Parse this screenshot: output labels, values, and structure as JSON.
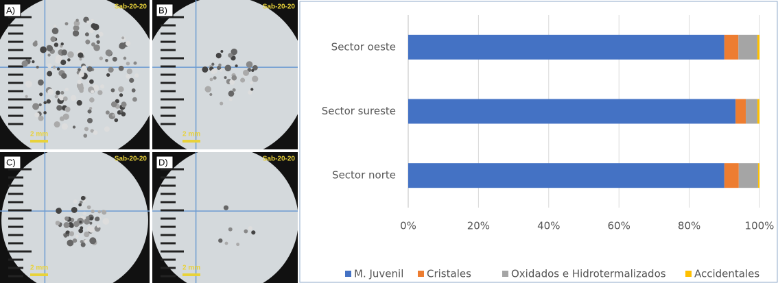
{
  "photos": [
    {
      "label": "A)",
      "sample": "Sab-20-20",
      "scale": "2 mm"
    },
    {
      "label": "B)",
      "sample": "Sab-20-20",
      "scale": "2 mm"
    },
    {
      "label": "C)",
      "sample": "Sab-20-20",
      "scale": "2 mm"
    },
    {
      "label": "D)",
      "sample": "Sab-20-20",
      "scale": "2 mm"
    }
  ],
  "chart_data": {
    "type": "stacked-barh",
    "categories": [
      "Sector oeste",
      "Sector sureste",
      "Sector norte"
    ],
    "series": [
      {
        "name": "M. Juvenil",
        "color": "#4472c4",
        "values": [
          90,
          93.2,
          90
        ]
      },
      {
        "name": "Cristales",
        "color": "#ed7d31",
        "values": [
          4,
          2.9,
          4.1
        ]
      },
      {
        "name": "Oxidados e Hidrotermalizados",
        "color": "#a5a5a5",
        "values": [
          5.4,
          3.3,
          5.5
        ]
      },
      {
        "name": "Accidentales",
        "color": "#ffc000",
        "values": [
          0.6,
          0.6,
          0.4
        ]
      }
    ],
    "xlim": [
      0,
      100
    ],
    "xticks": [
      {
        "value": 0,
        "label": "0%"
      },
      {
        "value": 20,
        "label": "20%"
      },
      {
        "value": 40,
        "label": "40%"
      },
      {
        "value": 60,
        "label": "60%"
      },
      {
        "value": 80,
        "label": "80%"
      },
      {
        "value": 100,
        "label": "100%"
      }
    ],
    "grid": true,
    "legend": "bottom"
  }
}
